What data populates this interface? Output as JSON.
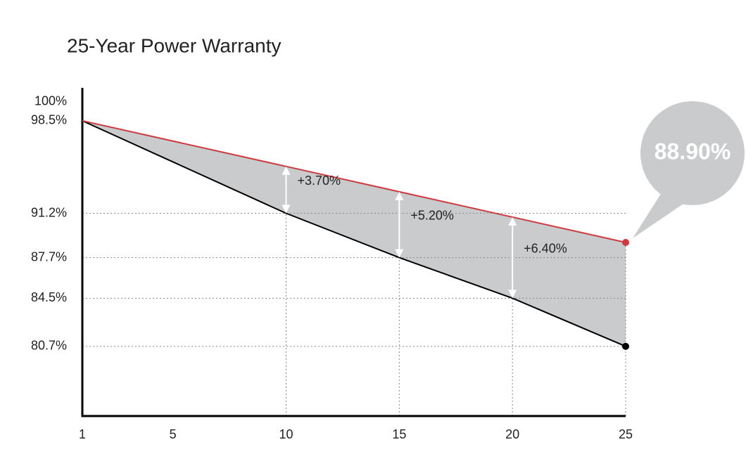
{
  "chart_data": {
    "type": "line",
    "title": "25-Year Power Warranty",
    "x": [
      1,
      10,
      15,
      20,
      25
    ],
    "series": [
      {
        "name": null,
        "color": "#d0393d",
        "values": [
          98.5,
          94.9,
          92.9,
          90.9,
          88.9
        ]
      },
      {
        "name": null,
        "color": "#000000",
        "values": [
          98.5,
          91.2,
          87.7,
          84.5,
          80.7
        ]
      }
    ],
    "xlim": [
      1,
      25
    ],
    "xticks": [
      1,
      5,
      10,
      15,
      20,
      25
    ],
    "ylim": [
      75.2,
      101.1
    ],
    "yticks": [
      {
        "value": 100,
        "label": "100%"
      },
      {
        "value": 98.5,
        "label": "98.5%"
      },
      {
        "value": 91.2,
        "label": "91.2%"
      },
      {
        "value": 87.7,
        "label": "87.7%"
      },
      {
        "value": 84.5,
        "label": "84.5%"
      },
      {
        "value": 80.7,
        "label": "80.7%"
      }
    ],
    "fill_color": "#c9cbcd",
    "annotations": [
      {
        "x": 10,
        "text": "+3.70%"
      },
      {
        "x": 15,
        "text": "+5.20%"
      },
      {
        "x": 20,
        "text": "+6.40%"
      }
    ],
    "callout": "88.90%"
  }
}
